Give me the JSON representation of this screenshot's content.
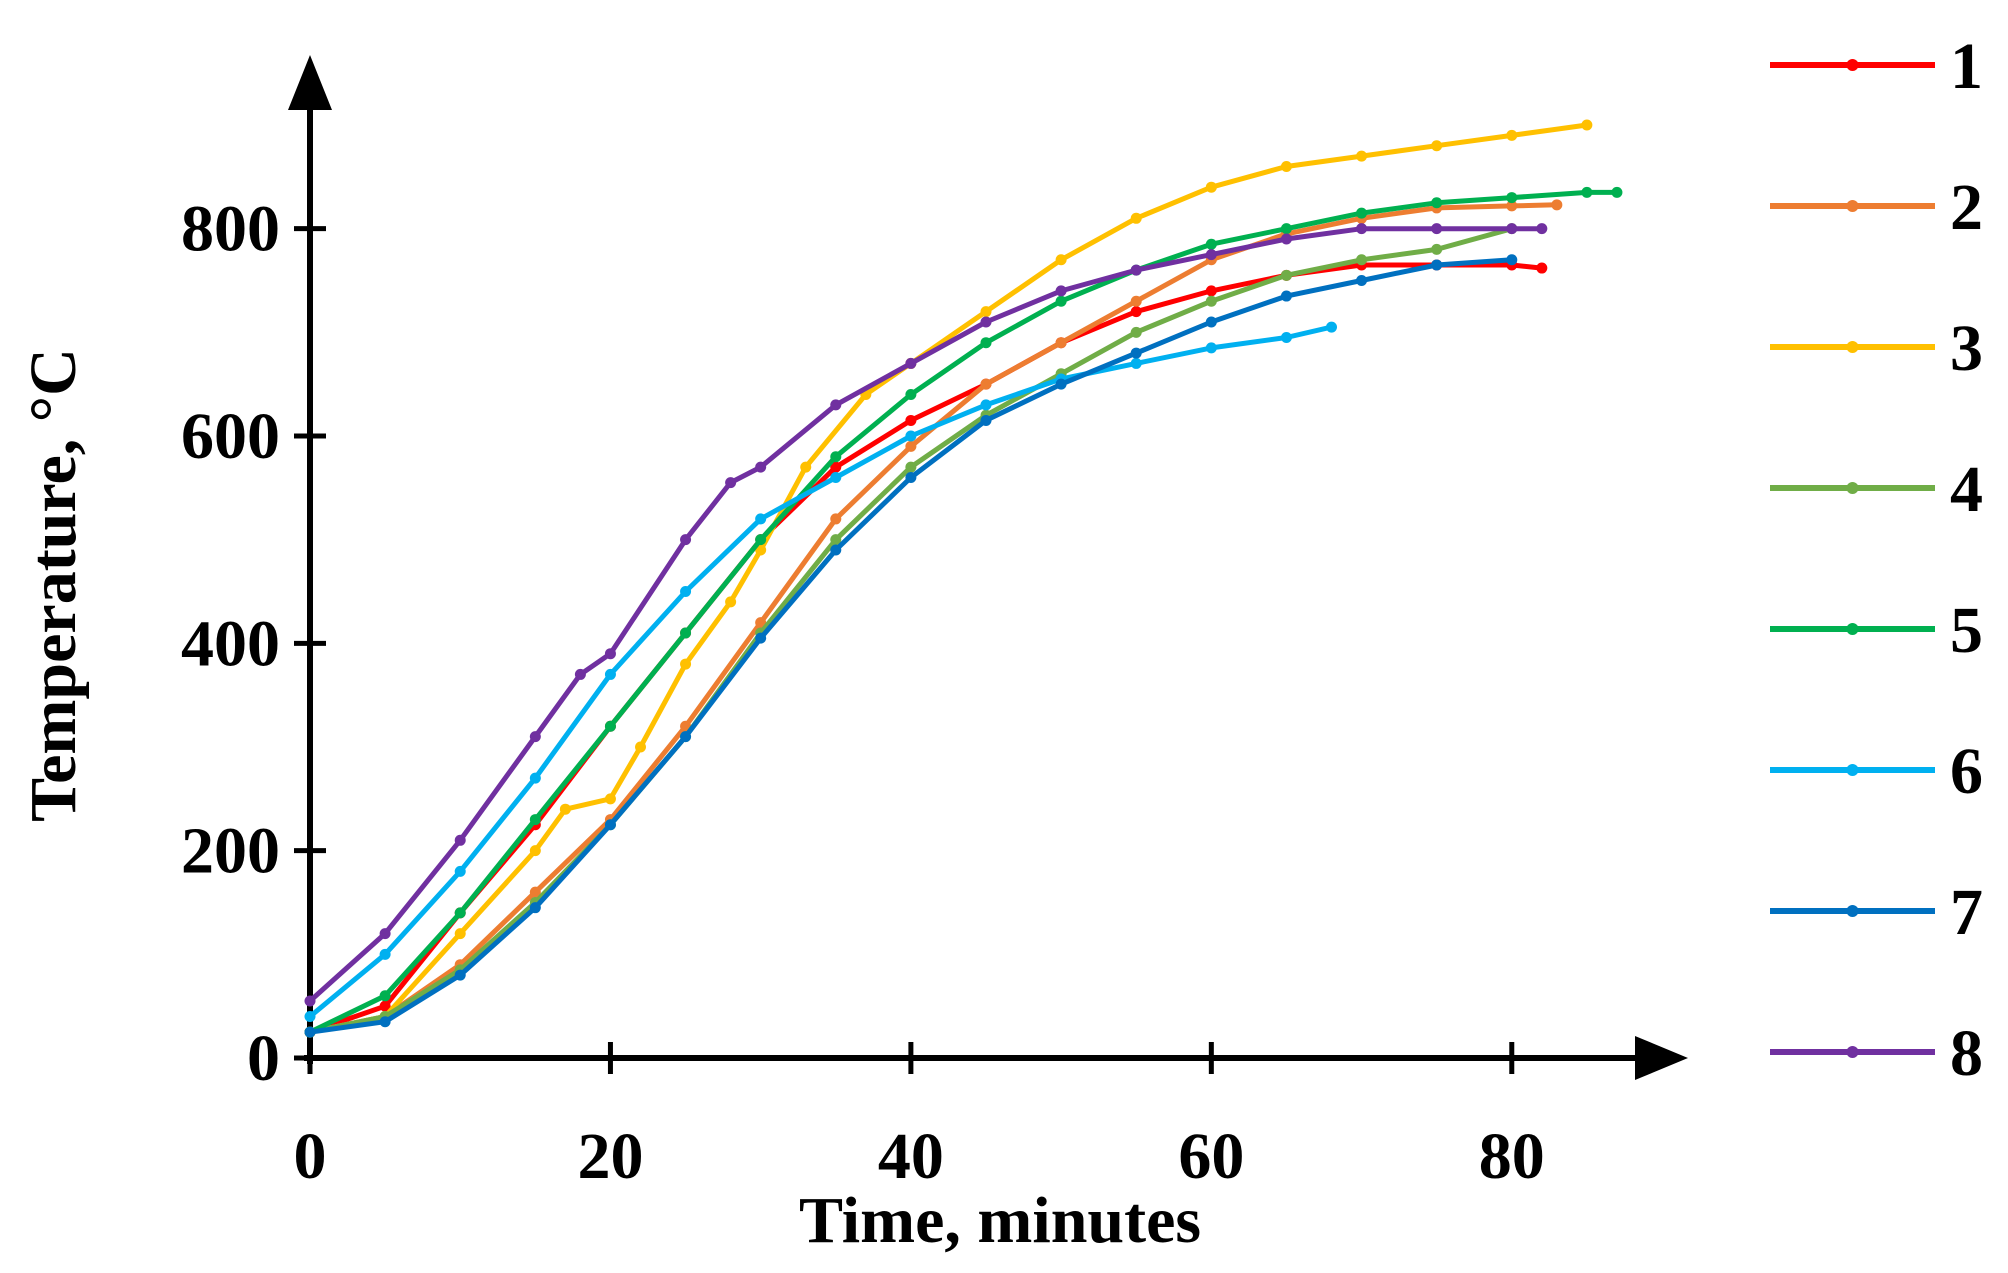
{
  "chart_data": {
    "type": "line",
    "title": "",
    "xlabel": "Time, minutes",
    "ylabel": "Temperature, °C",
    "xlim": [
      0,
      90
    ],
    "ylim": [
      0,
      900
    ],
    "x_ticks": [
      0,
      20,
      40,
      60,
      80
    ],
    "y_ticks": [
      0,
      200,
      400,
      600,
      800
    ],
    "legend_position": "right",
    "series": [
      {
        "name": "1",
        "color": "#ff0000",
        "x": [
          0,
          5,
          10,
          15,
          20,
          25,
          30,
          35,
          40,
          45,
          50,
          55,
          60,
          65,
          70,
          75,
          80,
          82
        ],
        "y": [
          25,
          50,
          140,
          225,
          320,
          410,
          500,
          570,
          615,
          650,
          690,
          720,
          740,
          755,
          765,
          765,
          765,
          762
        ]
      },
      {
        "name": "2",
        "color": "#ed7d31",
        "x": [
          0,
          5,
          10,
          15,
          20,
          25,
          30,
          35,
          40,
          45,
          50,
          55,
          60,
          65,
          70,
          75,
          80,
          83
        ],
        "y": [
          25,
          40,
          90,
          160,
          230,
          320,
          420,
          520,
          590,
          650,
          690,
          730,
          770,
          795,
          810,
          820,
          822,
          823
        ]
      },
      {
        "name": "3",
        "color": "#ffc000",
        "x": [
          0,
          5,
          10,
          15,
          17,
          20,
          22,
          25,
          28,
          30,
          33,
          37,
          40,
          45,
          50,
          55,
          60,
          65,
          70,
          75,
          80,
          85
        ],
        "y": [
          25,
          40,
          120,
          200,
          240,
          250,
          300,
          380,
          440,
          490,
          570,
          640,
          670,
          720,
          770,
          810,
          840,
          860,
          870,
          880,
          890,
          900
        ]
      },
      {
        "name": "4",
        "color": "#70ad47",
        "x": [
          0,
          5,
          10,
          15,
          20,
          25,
          30,
          35,
          40,
          45,
          50,
          55,
          60,
          65,
          70,
          75,
          80
        ],
        "y": [
          25,
          40,
          85,
          150,
          225,
          310,
          410,
          500,
          570,
          620,
          660,
          700,
          730,
          755,
          770,
          780,
          800
        ]
      },
      {
        "name": "5",
        "color": "#00b050",
        "x": [
          0,
          5,
          10,
          15,
          20,
          25,
          30,
          35,
          40,
          45,
          50,
          55,
          60,
          65,
          70,
          75,
          80,
          85,
          87
        ],
        "y": [
          25,
          60,
          140,
          230,
          320,
          410,
          500,
          580,
          640,
          690,
          730,
          760,
          785,
          800,
          815,
          825,
          830,
          835,
          835
        ]
      },
      {
        "name": "6",
        "color": "#00b0f0",
        "x": [
          0,
          5,
          10,
          15,
          20,
          25,
          30,
          35,
          40,
          45,
          50,
          55,
          60,
          65,
          68
        ],
        "y": [
          40,
          100,
          180,
          270,
          370,
          450,
          520,
          560,
          600,
          630,
          655,
          670,
          685,
          695,
          705
        ]
      },
      {
        "name": "7",
        "color": "#0070c0",
        "x": [
          0,
          5,
          10,
          15,
          20,
          25,
          30,
          35,
          40,
          45,
          50,
          55,
          60,
          65,
          70,
          75,
          80
        ],
        "y": [
          25,
          35,
          80,
          145,
          225,
          310,
          405,
          490,
          560,
          615,
          650,
          680,
          710,
          735,
          750,
          765,
          770
        ]
      },
      {
        "name": "8",
        "color": "#7030a0",
        "x": [
          0,
          5,
          10,
          15,
          18,
          20,
          25,
          28,
          30,
          35,
          40,
          45,
          50,
          55,
          60,
          65,
          70,
          75,
          80,
          82
        ],
        "y": [
          55,
          120,
          210,
          310,
          370,
          390,
          500,
          555,
          570,
          630,
          670,
          710,
          740,
          760,
          775,
          790,
          800,
          800,
          800,
          800
        ]
      }
    ]
  }
}
